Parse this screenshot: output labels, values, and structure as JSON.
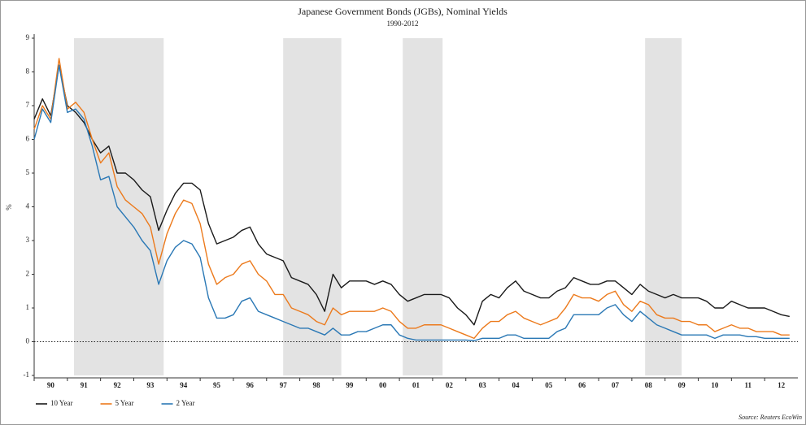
{
  "chart_data": {
    "type": "line",
    "title": "Japanese Government Bonds (JGBs), Nominal Yields",
    "subtitle": "1990-2012",
    "y_label": "%",
    "source": "Source: Reuters EcoWin",
    "xlim": [
      1990,
      2013
    ],
    "ylim": [
      -1,
      9
    ],
    "yticks": [
      -1,
      0,
      1,
      2,
      3,
      4,
      5,
      6,
      7,
      8,
      9
    ],
    "xticks": [
      {
        "value": 1990,
        "label": "90"
      },
      {
        "value": 1991,
        "label": "91"
      },
      {
        "value": 1992,
        "label": "92"
      },
      {
        "value": 1993,
        "label": "93"
      },
      {
        "value": 1994,
        "label": "94"
      },
      {
        "value": 1995,
        "label": "95"
      },
      {
        "value": 1996,
        "label": "96"
      },
      {
        "value": 1997,
        "label": "97"
      },
      {
        "value": 1998,
        "label": "98"
      },
      {
        "value": 1999,
        "label": "99"
      },
      {
        "value": 2000,
        "label": "00"
      },
      {
        "value": 2001,
        "label": "01"
      },
      {
        "value": 2002,
        "label": "02"
      },
      {
        "value": 2003,
        "label": "03"
      },
      {
        "value": 2004,
        "label": "04"
      },
      {
        "value": 2005,
        "label": "05"
      },
      {
        "value": 2006,
        "label": "06"
      },
      {
        "value": 2007,
        "label": "07"
      },
      {
        "value": 2008,
        "label": "08"
      },
      {
        "value": 2009,
        "label": "09"
      },
      {
        "value": 2010,
        "label": "10"
      },
      {
        "value": 2011,
        "label": "11"
      },
      {
        "value": 2012,
        "label": "12"
      }
    ],
    "shaded_periods": [
      [
        1991.2,
        1993.9
      ],
      [
        1997.5,
        1999.25
      ],
      [
        2001.1,
        2002.3
      ],
      [
        2008.4,
        2009.5
      ]
    ],
    "shade_color": "#e3e3e3",
    "zero_line": true,
    "legend": "bottom-left",
    "x": [
      1990,
      1990.25,
      1990.5,
      1990.75,
      1991,
      1991.25,
      1991.5,
      1991.75,
      1992,
      1992.25,
      1992.5,
      1992.75,
      1993,
      1993.25,
      1993.5,
      1993.75,
      1994,
      1994.25,
      1994.5,
      1994.75,
      1995,
      1995.25,
      1995.5,
      1995.75,
      1996,
      1996.25,
      1996.5,
      1996.75,
      1997,
      1997.25,
      1997.5,
      1997.75,
      1998,
      1998.25,
      1998.5,
      1998.75,
      1999,
      1999.25,
      1999.5,
      1999.75,
      2000,
      2000.25,
      2000.5,
      2000.75,
      2001,
      2001.25,
      2001.5,
      2001.75,
      2002,
      2002.25,
      2002.5,
      2002.75,
      2003,
      2003.25,
      2003.5,
      2003.75,
      2004,
      2004.25,
      2004.5,
      2004.75,
      2005,
      2005.25,
      2005.5,
      2005.75,
      2006,
      2006.25,
      2006.5,
      2006.75,
      2007,
      2007.25,
      2007.5,
      2007.75,
      2008,
      2008.25,
      2008.5,
      2008.75,
      2009,
      2009.25,
      2009.5,
      2009.75,
      2010,
      2010.25,
      2010.5,
      2010.75,
      2011,
      2011.25,
      2011.5,
      2011.75,
      2012,
      2012.25,
      2012.5,
      2012.75
    ],
    "series": [
      {
        "name": "10 Year",
        "color": "#1a1a1a",
        "values": [
          6.6,
          7.2,
          6.7,
          8.2,
          7.0,
          6.8,
          6.5,
          6.0,
          5.6,
          5.8,
          5.0,
          5.0,
          4.8,
          4.5,
          4.3,
          3.3,
          3.9,
          4.4,
          4.7,
          4.7,
          4.5,
          3.5,
          2.9,
          3.0,
          3.1,
          3.3,
          3.4,
          2.9,
          2.6,
          2.5,
          2.4,
          1.9,
          1.8,
          1.7,
          1.4,
          0.9,
          2.0,
          1.6,
          1.8,
          1.8,
          1.8,
          1.7,
          1.8,
          1.7,
          1.4,
          1.2,
          1.3,
          1.4,
          1.4,
          1.4,
          1.3,
          1.0,
          0.8,
          0.5,
          1.2,
          1.4,
          1.3,
          1.6,
          1.8,
          1.5,
          1.4,
          1.3,
          1.3,
          1.5,
          1.6,
          1.9,
          1.8,
          1.7,
          1.7,
          1.8,
          1.8,
          1.6,
          1.4,
          1.7,
          1.5,
          1.4,
          1.3,
          1.4,
          1.3,
          1.3,
          1.3,
          1.2,
          1.0,
          1.0,
          1.2,
          1.1,
          1.0,
          1.0,
          1.0,
          0.9,
          0.8,
          0.75
        ]
      },
      {
        "name": "5 Year",
        "color": "#ec7a1c",
        "values": [
          6.3,
          7.0,
          6.6,
          8.4,
          6.9,
          7.1,
          6.8,
          6.0,
          5.3,
          5.6,
          4.6,
          4.2,
          4.0,
          3.8,
          3.4,
          2.3,
          3.2,
          3.8,
          4.2,
          4.1,
          3.5,
          2.3,
          1.7,
          1.9,
          2.0,
          2.3,
          2.4,
          2.0,
          1.8,
          1.4,
          1.4,
          1.0,
          0.9,
          0.8,
          0.6,
          0.5,
          1.0,
          0.8,
          0.9,
          0.9,
          0.9,
          0.9,
          1.0,
          0.9,
          0.6,
          0.4,
          0.4,
          0.5,
          0.5,
          0.5,
          0.4,
          0.3,
          0.2,
          0.1,
          0.4,
          0.6,
          0.6,
          0.8,
          0.9,
          0.7,
          0.6,
          0.5,
          0.6,
          0.7,
          1.0,
          1.4,
          1.3,
          1.3,
          1.2,
          1.4,
          1.5,
          1.1,
          0.9,
          1.2,
          1.1,
          0.8,
          0.7,
          0.7,
          0.6,
          0.6,
          0.5,
          0.5,
          0.3,
          0.4,
          0.5,
          0.4,
          0.4,
          0.3,
          0.3,
          0.3,
          0.2,
          0.2
        ]
      },
      {
        "name": "2 Year",
        "color": "#2a78b5",
        "values": [
          6.0,
          6.9,
          6.5,
          8.2,
          6.8,
          6.9,
          6.6,
          5.8,
          4.8,
          4.9,
          4.0,
          3.7,
          3.4,
          3.0,
          2.7,
          1.7,
          2.4,
          2.8,
          3.0,
          2.9,
          2.5,
          1.3,
          0.7,
          0.7,
          0.8,
          1.2,
          1.3,
          0.9,
          0.8,
          0.7,
          0.6,
          0.5,
          0.4,
          0.4,
          0.3,
          0.2,
          0.4,
          0.2,
          0.2,
          0.3,
          0.3,
          0.4,
          0.5,
          0.5,
          0.2,
          0.1,
          0.05,
          0.05,
          0.05,
          0.05,
          0.05,
          0.05,
          0.05,
          0.03,
          0.1,
          0.1,
          0.1,
          0.2,
          0.2,
          0.1,
          0.1,
          0.1,
          0.1,
          0.3,
          0.4,
          0.8,
          0.8,
          0.8,
          0.8,
          1.0,
          1.1,
          0.8,
          0.6,
          0.9,
          0.7,
          0.5,
          0.4,
          0.3,
          0.2,
          0.2,
          0.2,
          0.2,
          0.1,
          0.2,
          0.2,
          0.2,
          0.15,
          0.15,
          0.1,
          0.1,
          0.1,
          0.1
        ]
      }
    ]
  }
}
